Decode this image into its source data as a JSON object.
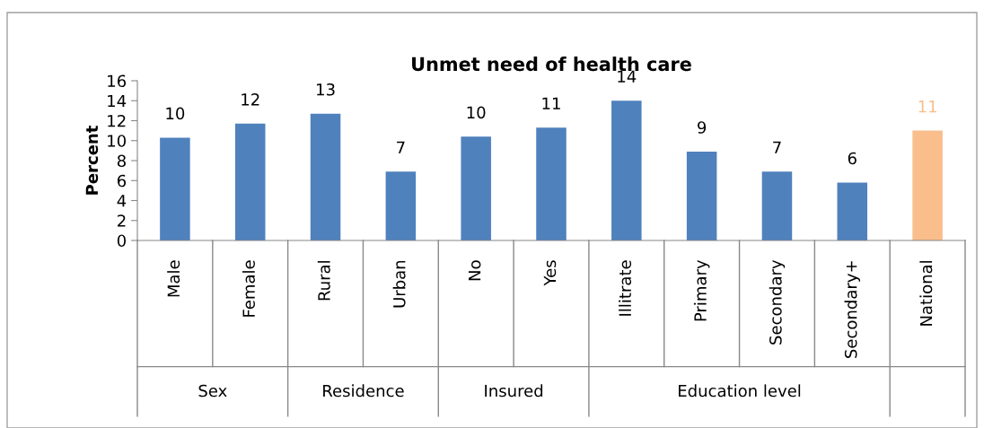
{
  "chart_data": {
    "type": "bar",
    "title": "Unmet need of health care",
    "ylabel": "Percent",
    "categories": [
      "Male",
      "Female",
      "Rural",
      "Urban",
      "No",
      "Yes",
      "Illitrate",
      "Primary",
      "Secondary",
      "Secondary+",
      "National"
    ],
    "values": [
      10.3,
      11.7,
      12.7,
      6.9,
      10.4,
      11.3,
      14.0,
      8.9,
      6.9,
      5.8,
      11.0
    ],
    "value_labels": [
      "10",
      "12",
      "13",
      "7",
      "10",
      "11",
      "14",
      "9",
      "7",
      "6",
      "11"
    ],
    "colors": [
      "#4f81bd",
      "#4f81bd",
      "#4f81bd",
      "#4f81bd",
      "#4f81bd",
      "#4f81bd",
      "#4f81bd",
      "#4f81bd",
      "#4f81bd",
      "#4f81bd",
      "#f9be8c"
    ],
    "ylim": [
      0,
      16
    ],
    "yticks": [
      0,
      2,
      4,
      6,
      8,
      10,
      12,
      14,
      16
    ],
    "grid": false,
    "legend": false,
    "annotations": [
      "Sex",
      "Residence",
      "Insured",
      "Education level"
    ]
  }
}
